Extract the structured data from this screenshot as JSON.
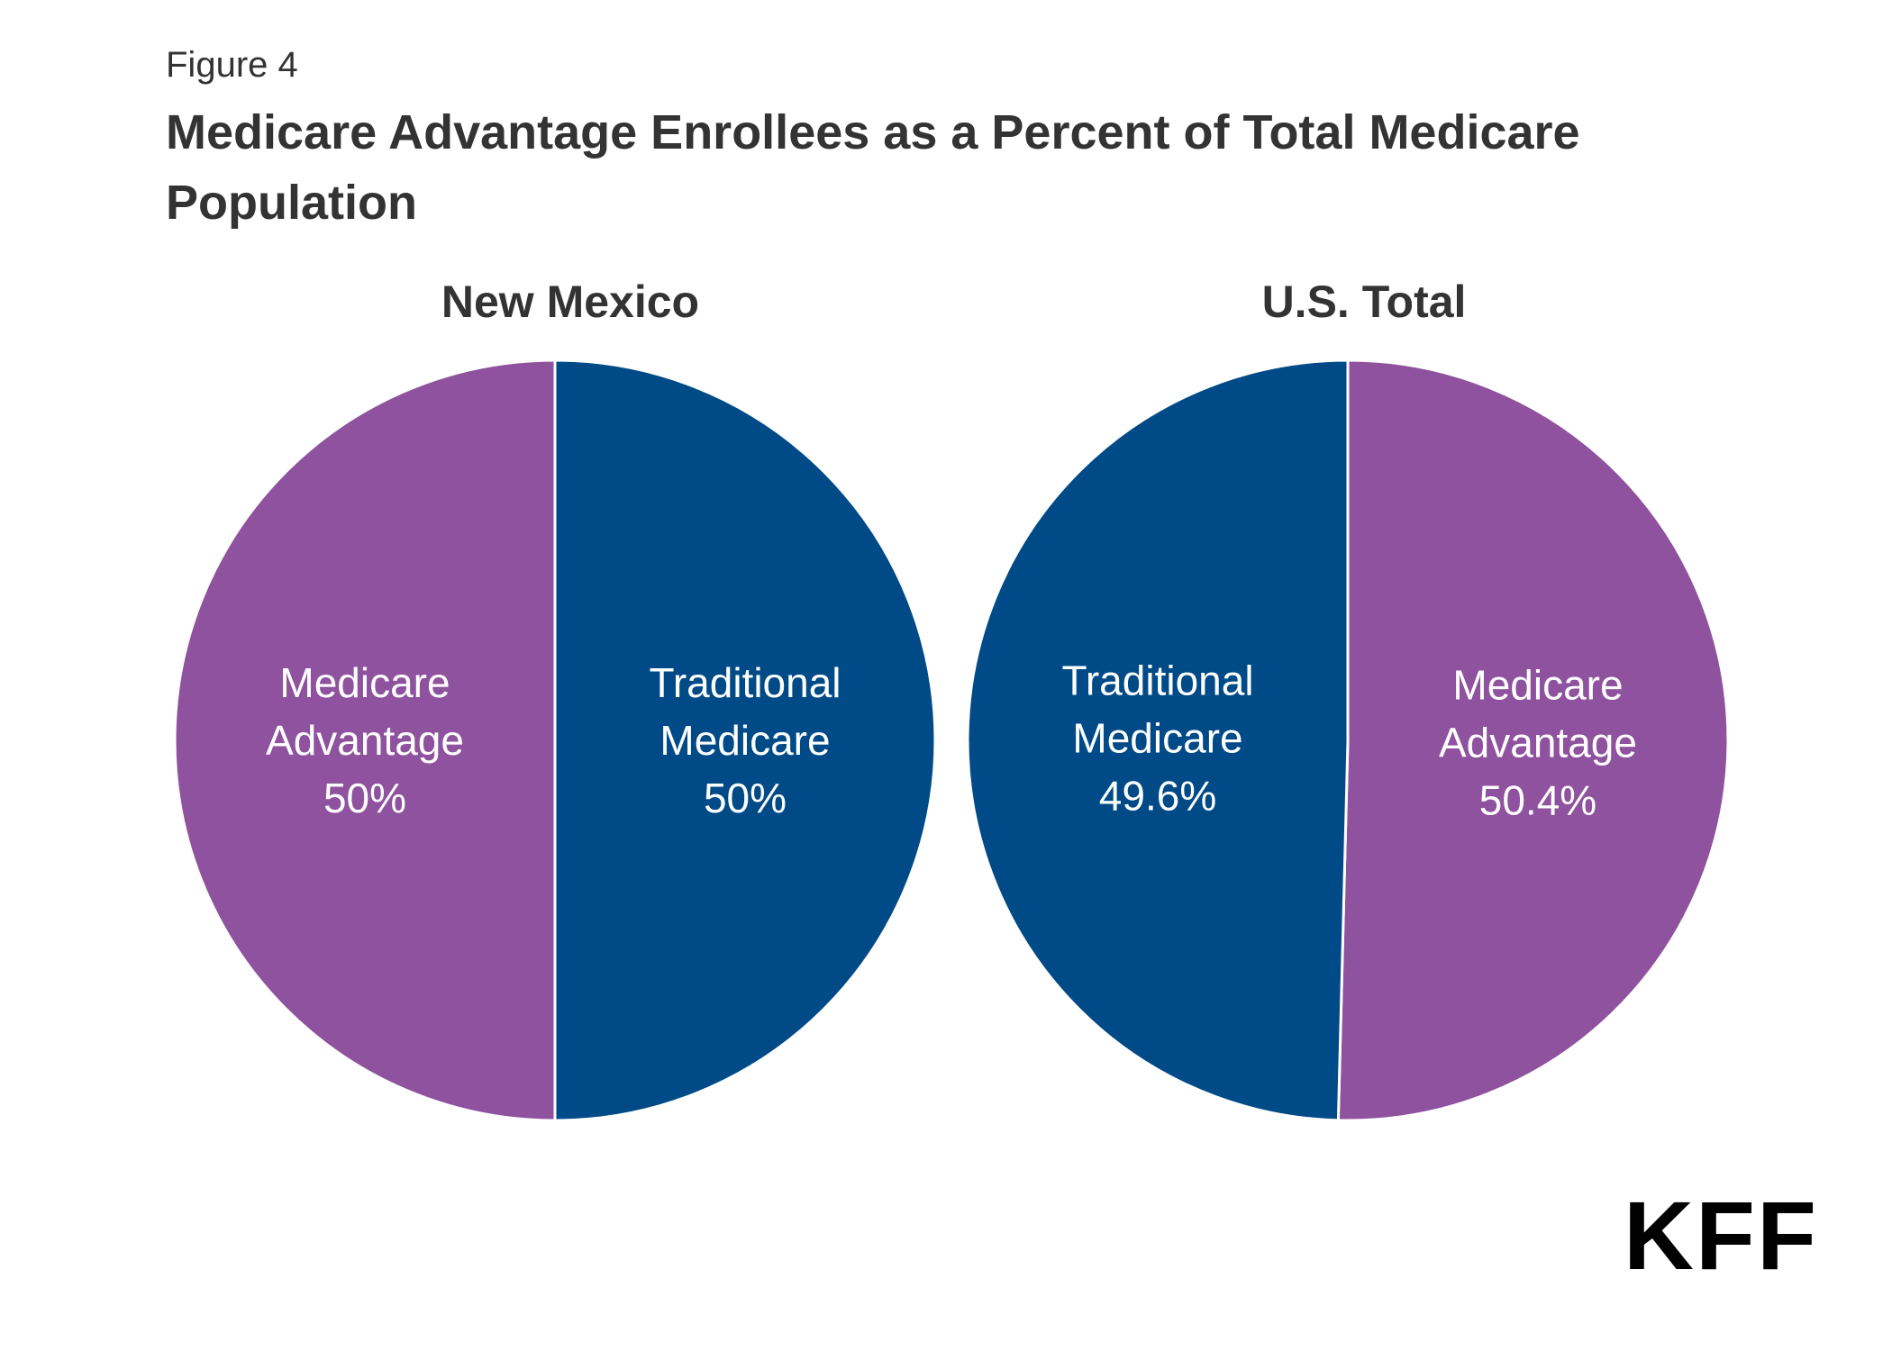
{
  "figure_label": "Figure 4",
  "title": "Medicare Advantage Enrollees as a Percent of Total Medicare Population",
  "logo_text": "KFF",
  "colors": {
    "medicare_advantage": "#8f529e",
    "traditional_medicare": "#004b87"
  },
  "chart_data": [
    {
      "type": "pie",
      "title": "New Mexico",
      "slices": [
        {
          "label_lines": [
            "Traditional",
            "Medicare"
          ],
          "value": 50,
          "display": "50%",
          "color": "#004b87"
        },
        {
          "label_lines": [
            "Medicare",
            "Advantage"
          ],
          "value": 50,
          "display": "50%",
          "color": "#8f529e"
        }
      ]
    },
    {
      "type": "pie",
      "title": "U.S. Total",
      "slices": [
        {
          "label_lines": [
            "Medicare",
            "Advantage"
          ],
          "value": 50.4,
          "display": "50.4%",
          "color": "#8f529e"
        },
        {
          "label_lines": [
            "Traditional",
            "Medicare"
          ],
          "value": 49.6,
          "display": "49.6%",
          "color": "#004b87"
        }
      ]
    }
  ]
}
